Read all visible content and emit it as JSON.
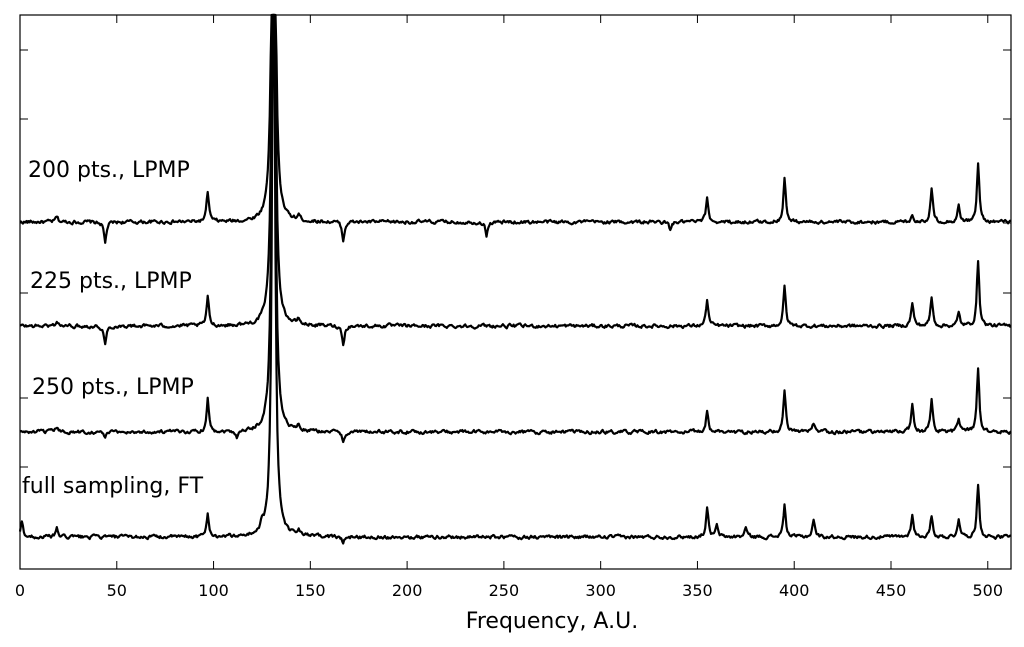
{
  "chart_data": {
    "type": "line",
    "title": "",
    "xlabel": "Frequency, A.U.",
    "ylabel": "",
    "xlim": [
      0,
      512
    ],
    "x_ticks": [
      0,
      50,
      100,
      150,
      200,
      250,
      300,
      350,
      400,
      450,
      500
    ],
    "grid": false,
    "legend": "none",
    "series": [
      {
        "name": "200 pts., LPMP",
        "offset": 3,
        "peaks": [
          [
            19,
            0.05
          ],
          [
            44,
            -0.2
          ],
          [
            97,
            0.28
          ],
          [
            131,
            6.0
          ],
          [
            144,
            0.05
          ],
          [
            167,
            -0.18
          ],
          [
            241,
            -0.13
          ],
          [
            336,
            -0.08
          ],
          [
            355,
            0.22
          ],
          [
            395,
            0.42
          ],
          [
            461,
            0.07
          ],
          [
            471,
            0.32
          ],
          [
            485,
            0.15
          ],
          [
            495,
            0.55
          ]
        ]
      },
      {
        "name": "225 pts., LPMP",
        "offset": 2,
        "peaks": [
          [
            19,
            0.05
          ],
          [
            44,
            -0.18
          ],
          [
            97,
            0.27
          ],
          [
            131,
            6.0
          ],
          [
            144,
            0.05
          ],
          [
            167,
            -0.18
          ],
          [
            355,
            0.25
          ],
          [
            395,
            0.37
          ],
          [
            461,
            0.22
          ],
          [
            471,
            0.27
          ],
          [
            485,
            0.12
          ],
          [
            495,
            0.62
          ]
        ]
      },
      {
        "name": "250 pts., LPMP",
        "offset": 1,
        "peaks": [
          [
            19,
            0.05
          ],
          [
            44,
            -0.05
          ],
          [
            97,
            0.32
          ],
          [
            112,
            -0.06
          ],
          [
            131,
            6.0
          ],
          [
            144,
            0.05
          ],
          [
            167,
            -0.1
          ],
          [
            355,
            0.2
          ],
          [
            395,
            0.38
          ],
          [
            410,
            0.07
          ],
          [
            461,
            0.27
          ],
          [
            471,
            0.3
          ],
          [
            485,
            0.13
          ],
          [
            495,
            0.6
          ]
        ]
      },
      {
        "name": "full sampling, FT",
        "offset": 0,
        "peaks": [
          [
            1,
            0.14
          ],
          [
            19,
            0.08
          ],
          [
            97,
            0.22
          ],
          [
            125,
            0.06
          ],
          [
            131,
            6.0
          ],
          [
            144,
            0.07
          ],
          [
            167,
            -0.06
          ],
          [
            355,
            0.27
          ],
          [
            360,
            0.1
          ],
          [
            375,
            0.09
          ],
          [
            395,
            0.3
          ],
          [
            410,
            0.17
          ],
          [
            461,
            0.22
          ],
          [
            471,
            0.2
          ],
          [
            485,
            0.18
          ],
          [
            495,
            0.5
          ]
        ]
      }
    ]
  }
}
